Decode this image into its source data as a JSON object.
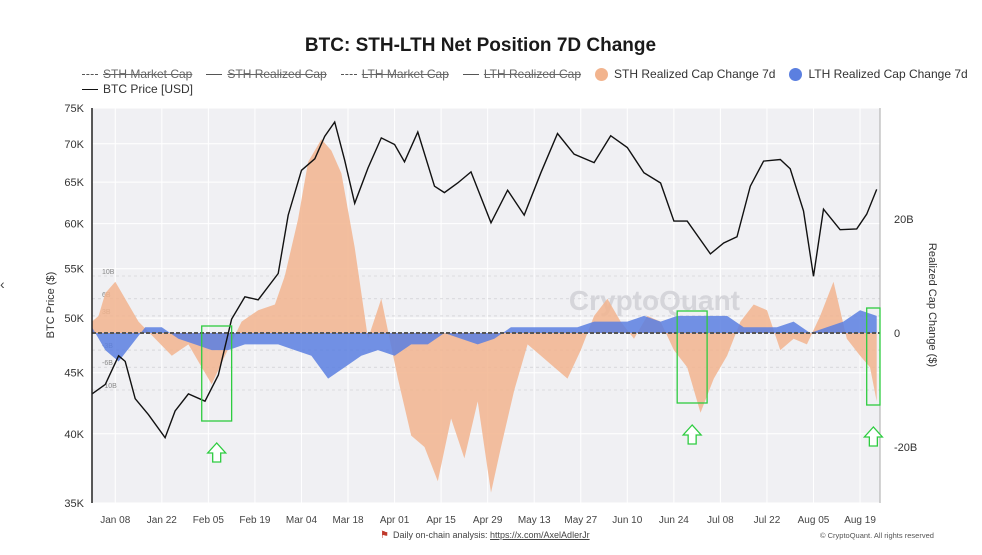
{
  "title": "BTC: STH-LTH Net Position 7D Change",
  "legend": [
    {
      "label": "STH Market Cap",
      "style": "dashed",
      "enabled": false
    },
    {
      "label": "STH Realized Cap",
      "style": "solid",
      "enabled": false
    },
    {
      "label": "LTH Market Cap",
      "style": "dashed",
      "enabled": false
    },
    {
      "label": "LTH Realized Cap",
      "style": "solid",
      "enabled": false
    },
    {
      "label": "STH Realized Cap Change 7d",
      "style": "dot",
      "color": "#f2b48e",
      "enabled": true
    },
    {
      "label": "LTH Realized Cap Change 7d",
      "style": "dot",
      "color": "#5b7fe0",
      "enabled": true
    },
    {
      "label": "BTC Price [USD]",
      "style": "solid",
      "color": "#111111",
      "enabled": true
    }
  ],
  "footer": {
    "note": "Daily on-chain analysis:",
    "link": "https://x.com/AxelAdlerJr",
    "copyright": "© CryptoQuant. All rights reserved"
  },
  "watermark": "CryptoQuant",
  "colors": {
    "sth": "#f2b48e",
    "lth": "#5b7fe0",
    "price": "#111111",
    "plot_bg": "#f0f0f3",
    "highlight": "#2ecc40"
  },
  "chart_data": {
    "type": "line",
    "title": "BTC: STH-LTH Net Position 7D Change",
    "xlabel": "",
    "ylabel": "BTC Price ($)",
    "y2label": "Realized Cap Change ($)",
    "x_ticks": [
      "Jan 08",
      "Jan 22",
      "Feb 05",
      "Feb 19",
      "Mar 04",
      "Mar 18",
      "Apr 01",
      "Apr 15",
      "Apr 29",
      "May 13",
      "May 27",
      "Jun 10",
      "Jun 24",
      "Jul 08",
      "Jul 22",
      "Aug 05",
      "Aug 19"
    ],
    "x_range": [
      "2024-01-01",
      "2024-08-25"
    ],
    "y_left": {
      "scale": "log",
      "ticks": [
        "35K",
        "40K",
        "45K",
        "50K",
        "55K",
        "60K",
        "65K",
        "70K",
        "75K"
      ],
      "range": [
        35000,
        75000
      ]
    },
    "y_right": {
      "ticks": [
        "-20B",
        "0",
        "20B"
      ],
      "range": [
        -30,
        42
      ]
    },
    "inner_labels": [
      "10B",
      "6B",
      "3B",
      "-3B",
      "-6B",
      "-10B"
    ],
    "grid": true,
    "legend_position": "top",
    "series": [
      {
        "name": "BTC Price [USD]",
        "axis": "left",
        "x": [
          "2024-01-01",
          "2024-01-05",
          "2024-01-09",
          "2024-01-11",
          "2024-01-14",
          "2024-01-18",
          "2024-01-23",
          "2024-01-26",
          "2024-01-30",
          "2024-02-04",
          "2024-02-08",
          "2024-02-12",
          "2024-02-16",
          "2024-02-20",
          "2024-02-26",
          "2024-02-29",
          "2024-03-04",
          "2024-03-08",
          "2024-03-11",
          "2024-03-14",
          "2024-03-17",
          "2024-03-20",
          "2024-03-24",
          "2024-03-28",
          "2024-04-01",
          "2024-04-04",
          "2024-04-08",
          "2024-04-13",
          "2024-04-16",
          "2024-04-20",
          "2024-04-24",
          "2024-04-30",
          "2024-05-05",
          "2024-05-10",
          "2024-05-15",
          "2024-05-20",
          "2024-05-25",
          "2024-05-31",
          "2024-06-05",
          "2024-06-10",
          "2024-06-15",
          "2024-06-20",
          "2024-06-24",
          "2024-06-28",
          "2024-07-05",
          "2024-07-09",
          "2024-07-13",
          "2024-07-17",
          "2024-07-21",
          "2024-07-26",
          "2024-07-29",
          "2024-08-02",
          "2024-08-05",
          "2024-08-08",
          "2024-08-13",
          "2024-08-18",
          "2024-08-21",
          "2024-08-24"
        ],
        "values": [
          43200,
          44000,
          46500,
          46000,
          42800,
          41500,
          39700,
          41800,
          43200,
          42600,
          44800,
          49900,
          52100,
          51800,
          54500,
          61000,
          66500,
          68000,
          71000,
          73000,
          67800,
          62400,
          66800,
          70800,
          69900,
          67600,
          71600,
          64500,
          63700,
          64900,
          66300,
          60100,
          64000,
          61000,
          66200,
          71400,
          68600,
          67500,
          71100,
          69500,
          66200,
          64900,
          60300,
          60300,
          56600,
          57800,
          58500,
          64500,
          67700,
          67900,
          66700,
          61500,
          54200,
          61700,
          59300,
          59400,
          61100,
          64100
        ]
      },
      {
        "name": "STH Realized Cap Change 7d",
        "axis": "right",
        "x": [
          "2024-01-01",
          "2024-01-03",
          "2024-01-05",
          "2024-01-08",
          "2024-01-11",
          "2024-01-15",
          "2024-01-20",
          "2024-01-25",
          "2024-01-30",
          "2024-02-03",
          "2024-02-06",
          "2024-02-10",
          "2024-02-15",
          "2024-02-20",
          "2024-02-25",
          "2024-02-28",
          "2024-03-03",
          "2024-03-06",
          "2024-03-10",
          "2024-03-13",
          "2024-03-16",
          "2024-03-20",
          "2024-03-24",
          "2024-03-28",
          "2024-04-02",
          "2024-04-06",
          "2024-04-10",
          "2024-04-14",
          "2024-04-18",
          "2024-04-22",
          "2024-04-26",
          "2024-04-30",
          "2024-05-03",
          "2024-05-07",
          "2024-05-11",
          "2024-05-15",
          "2024-05-19",
          "2024-05-23",
          "2024-05-27",
          "2024-05-31",
          "2024-06-04",
          "2024-06-08",
          "2024-06-12",
          "2024-06-16",
          "2024-06-20",
          "2024-06-24",
          "2024-06-28",
          "2024-07-02",
          "2024-07-06",
          "2024-07-10",
          "2024-07-14",
          "2024-07-18",
          "2024-07-22",
          "2024-07-26",
          "2024-07-30",
          "2024-08-03",
          "2024-08-07",
          "2024-08-11",
          "2024-08-15",
          "2024-08-19",
          "2024-08-22",
          "2024-08-24"
        ],
        "values": [
          2,
          3,
          7,
          9,
          6,
          2,
          -1,
          -4,
          -2,
          -6,
          -9,
          -4,
          2,
          4,
          5,
          10,
          20,
          30,
          34,
          32,
          28,
          15,
          -1,
          6,
          -8,
          -18,
          -20,
          -26,
          -15,
          -22,
          -12,
          -28,
          -20,
          -10,
          -2,
          -4,
          -6,
          -8,
          -3,
          3,
          6,
          2,
          -1,
          3,
          2,
          -3,
          -6,
          -14,
          -8,
          -4,
          2,
          5,
          4,
          -3,
          -1,
          -2,
          3,
          9,
          -1,
          -4,
          -6,
          -12
        ]
      },
      {
        "name": "LTH Realized Cap Change 7d",
        "axis": "right",
        "x": [
          "2024-01-01",
          "2024-01-05",
          "2024-01-09",
          "2024-01-13",
          "2024-01-17",
          "2024-01-22",
          "2024-01-27",
          "2024-02-01",
          "2024-02-06",
          "2024-02-11",
          "2024-02-16",
          "2024-02-21",
          "2024-02-26",
          "2024-03-02",
          "2024-03-07",
          "2024-03-12",
          "2024-03-17",
          "2024-03-22",
          "2024-03-27",
          "2024-04-01",
          "2024-04-06",
          "2024-04-11",
          "2024-04-16",
          "2024-04-21",
          "2024-04-26",
          "2024-05-01",
          "2024-05-06",
          "2024-05-11",
          "2024-05-16",
          "2024-05-21",
          "2024-05-26",
          "2024-05-31",
          "2024-06-05",
          "2024-06-10",
          "2024-06-15",
          "2024-06-20",
          "2024-06-25",
          "2024-06-30",
          "2024-07-05",
          "2024-07-10",
          "2024-07-15",
          "2024-07-20",
          "2024-07-25",
          "2024-07-30",
          "2024-08-04",
          "2024-08-09",
          "2024-08-14",
          "2024-08-19",
          "2024-08-24"
        ],
        "values": [
          1,
          -3,
          -5,
          -2,
          1,
          1,
          -1,
          -2,
          -3,
          -3,
          -2,
          -2,
          -2,
          -3,
          -4,
          -8,
          -6,
          -4,
          -3,
          -4,
          -2,
          -2,
          0,
          -1,
          -2,
          -1,
          1,
          1,
          1,
          1,
          1,
          2,
          2,
          2,
          3,
          2,
          3,
          3,
          3,
          3,
          1,
          1,
          1,
          2,
          0,
          1,
          2,
          4,
          3
        ]
      }
    ]
  }
}
